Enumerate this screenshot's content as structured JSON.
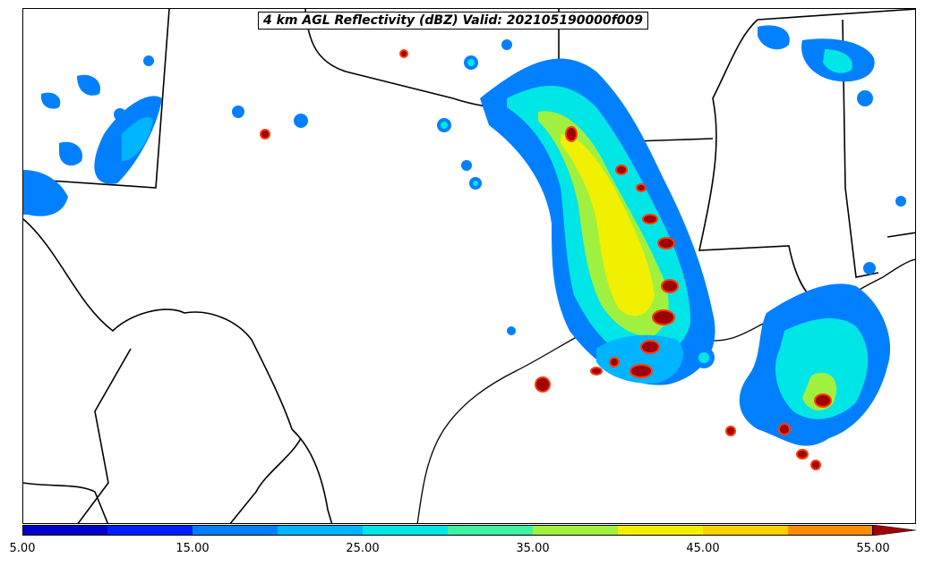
{
  "title": "4 km AGL Reflectivity (dBZ) Valid: 202105190000f009",
  "colorbar": {
    "colors": [
      "#0000c8",
      "#0020ff",
      "#0080ff",
      "#00b4ff",
      "#00e6e6",
      "#40f2a0",
      "#a0f040",
      "#f0f000",
      "#ffd000",
      "#ff8c00",
      "#ff3c00",
      "#d00000",
      "#a00000"
    ],
    "ticks": [
      "5.00",
      "15.00",
      "25.00",
      "35.00",
      "45.00",
      "55.00"
    ]
  },
  "icons": {
    "extend": "triangle-arrow"
  }
}
